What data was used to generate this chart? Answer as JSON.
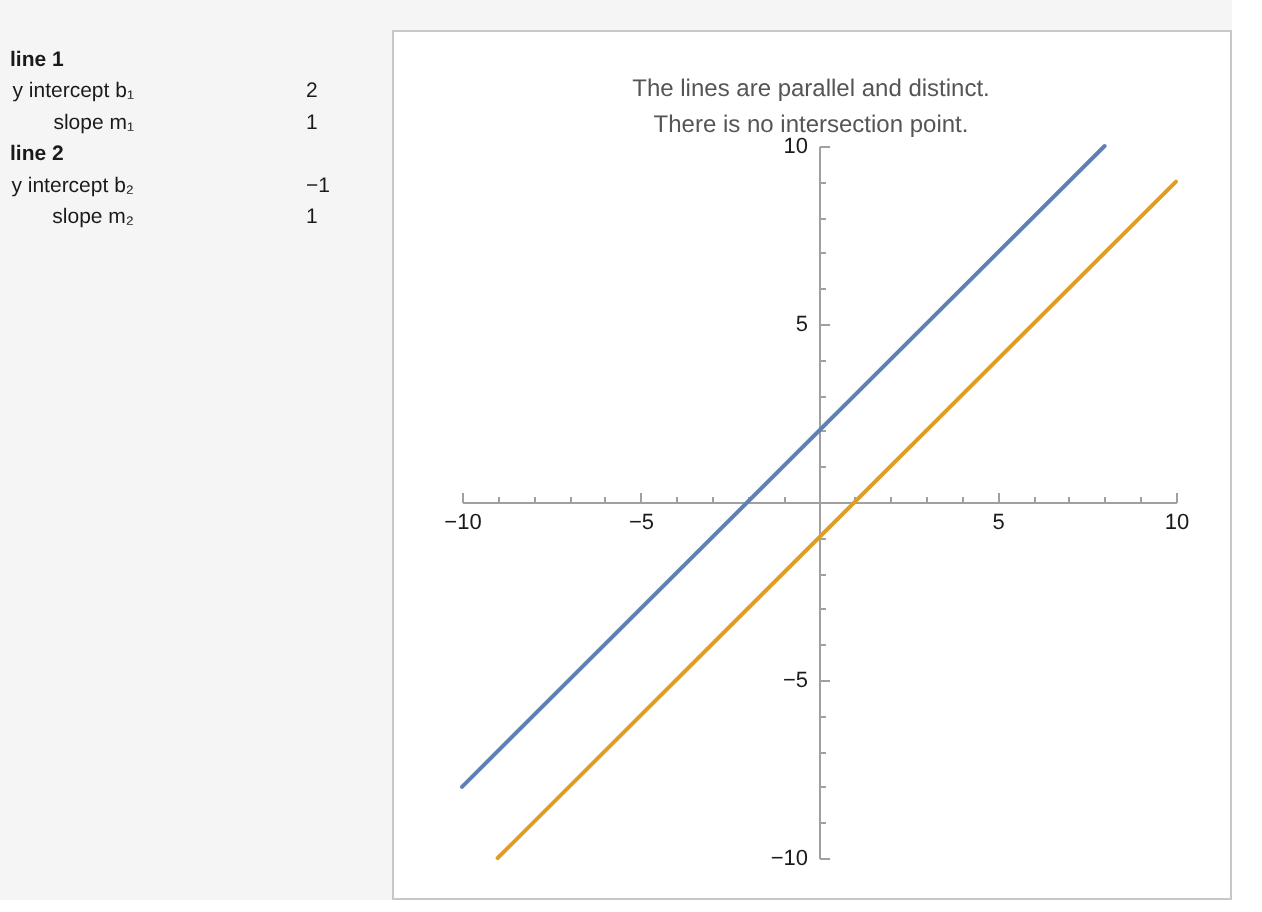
{
  "chart_data": [
    {
      "type": "other",
      "annotations": [
        "line 1",
        "y intercept b₁",
        "2",
        "slope m₁",
        "1",
        "line 2",
        "y intercept b₂",
        "−1",
        "slope m₂",
        "1"
      ]
    },
    {
      "type": "line",
      "title": "The lines are parallel and distinct.\nThere is no intersection point.",
      "xlim": [
        -10,
        10
      ],
      "ylim": [
        -10,
        10
      ],
      "xticks": [
        -10,
        {
          "value": -9,
          "label": null
        },
        {
          "value": -8,
          "label": null
        },
        {
          "value": -7,
          "label": null
        },
        {
          "value": -6,
          "label": null
        },
        -5,
        {
          "value": -4,
          "label": null
        },
        {
          "value": -3,
          "label": null
        },
        {
          "value": -2,
          "label": null
        },
        {
          "value": -1,
          "label": null
        },
        {
          "value": 1,
          "label": null
        },
        {
          "value": 2,
          "label": null
        },
        {
          "value": 3,
          "label": null
        },
        {
          "value": 4,
          "label": null
        },
        5,
        {
          "value": 6,
          "label": null
        },
        {
          "value": 7,
          "label": null
        },
        {
          "value": 8,
          "label": null
        },
        {
          "value": 9,
          "label": null
        },
        10
      ],
      "yticks": [
        -10,
        {
          "value": -9,
          "label": null
        },
        {
          "value": -8,
          "label": null
        },
        {
          "value": -7,
          "label": null
        },
        {
          "value": -6,
          "label": null
        },
        -5,
        {
          "value": -4,
          "label": null
        },
        {
          "value": -3,
          "label": null
        },
        {
          "value": -2,
          "label": null
        },
        {
          "value": -1,
          "label": null
        },
        {
          "value": 1,
          "label": null
        },
        {
          "value": 2,
          "label": null
        },
        {
          "value": 3,
          "label": null
        },
        {
          "value": 4,
          "label": null
        },
        5,
        {
          "value": 6,
          "label": null
        },
        {
          "value": 7,
          "label": null
        },
        {
          "value": 8,
          "label": null
        },
        {
          "value": 9,
          "label": null
        },
        10
      ],
      "series": [
        {
          "color": "#5e81b5",
          "x": [
            -10,
            8
          ],
          "values": [
            -8,
            10
          ]
        },
        {
          "color": "#e19c24",
          "x": [
            -9,
            10
          ],
          "values": [
            -10,
            9
          ]
        }
      ]
    }
  ]
}
